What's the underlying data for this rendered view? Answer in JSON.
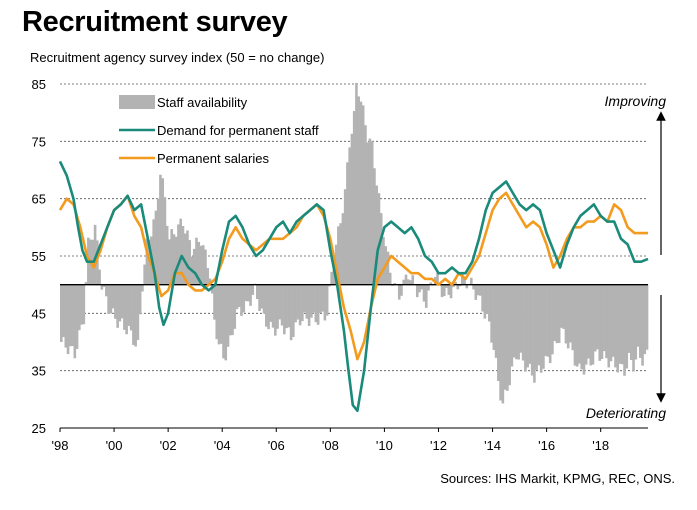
{
  "title": "Recruitment survey",
  "subtitle": "Recruitment agency survey index (50 = no change)",
  "source": "Sources: IHS Markit, KPMG, REC, ONS.",
  "colors": {
    "staff": "#b3b3b3",
    "demand": "#1a8a7a",
    "salaries": "#f39b1e"
  },
  "chart_data": {
    "type": "bar",
    "ylim": [
      25,
      85
    ],
    "yticks": [
      "85",
      "75",
      "65",
      "55",
      "45",
      "35",
      "25"
    ],
    "xlim": [
      1998.0,
      2019.75
    ],
    "xticks": [
      "'98",
      "'00",
      "'02",
      "'04",
      "'06",
      "'08",
      "'10",
      "'12",
      "'14",
      "'16",
      "'18"
    ],
    "baseline": 50,
    "annotations": {
      "up": "Improving",
      "down": "Deteriorating"
    },
    "series": [
      {
        "name": "Staff availability",
        "kind": "bar",
        "points": [
          [
            1998.0,
            40
          ],
          [
            1998.5,
            38
          ],
          [
            1998.83,
            44
          ],
          [
            1999.0,
            57
          ],
          [
            1999.25,
            60
          ],
          [
            1999.5,
            50
          ],
          [
            1999.75,
            46
          ],
          [
            2000.0,
            44
          ],
          [
            2000.5,
            42
          ],
          [
            2000.83,
            39
          ],
          [
            2001.0,
            50
          ],
          [
            2001.17,
            57
          ],
          [
            2001.5,
            62
          ],
          [
            2001.67,
            70
          ],
          [
            2001.83,
            65
          ],
          [
            2002.0,
            58
          ],
          [
            2002.5,
            61
          ],
          [
            2002.83,
            56
          ],
          [
            2003.17,
            58
          ],
          [
            2003.5,
            52
          ],
          [
            2003.67,
            43
          ],
          [
            2004.0,
            37
          ],
          [
            2004.25,
            40
          ],
          [
            2004.5,
            45
          ],
          [
            2004.83,
            46
          ],
          [
            2005.17,
            49
          ],
          [
            2005.5,
            44
          ],
          [
            2005.83,
            42
          ],
          [
            2006.17,
            43
          ],
          [
            2006.5,
            41
          ],
          [
            2006.83,
            44
          ],
          [
            2007.17,
            44
          ],
          [
            2007.5,
            44
          ],
          [
            2007.83,
            45
          ],
          [
            2008.0,
            52
          ],
          [
            2008.17,
            57
          ],
          [
            2008.33,
            61
          ],
          [
            2008.5,
            66
          ],
          [
            2008.67,
            75
          ],
          [
            2008.83,
            79
          ],
          [
            2008.92,
            85
          ],
          [
            2009.0,
            84
          ],
          [
            2009.17,
            80
          ],
          [
            2009.33,
            76
          ],
          [
            2009.5,
            74
          ],
          [
            2009.67,
            68
          ],
          [
            2009.83,
            62
          ],
          [
            2010.0,
            57
          ],
          [
            2010.17,
            52
          ],
          [
            2010.33,
            50
          ],
          [
            2010.5,
            48
          ],
          [
            2010.83,
            52
          ],
          [
            2011.17,
            49
          ],
          [
            2011.5,
            47
          ],
          [
            2011.83,
            52
          ],
          [
            2012.17,
            48
          ],
          [
            2012.5,
            49
          ],
          [
            2012.83,
            51
          ],
          [
            2013.17,
            50
          ],
          [
            2013.5,
            47
          ],
          [
            2013.83,
            43
          ],
          [
            2014.0,
            39
          ],
          [
            2014.17,
            33
          ],
          [
            2014.33,
            29
          ],
          [
            2014.5,
            32
          ],
          [
            2014.67,
            35
          ],
          [
            2014.83,
            38
          ],
          [
            2015.17,
            36
          ],
          [
            2015.5,
            34
          ],
          [
            2015.83,
            36
          ],
          [
            2016.17,
            38
          ],
          [
            2016.5,
            42
          ],
          [
            2016.83,
            39
          ],
          [
            2017.17,
            35
          ],
          [
            2017.5,
            36
          ],
          [
            2017.83,
            38
          ],
          [
            2018.17,
            37
          ],
          [
            2018.5,
            36
          ],
          [
            2018.83,
            35
          ],
          [
            2019.0,
            37
          ],
          [
            2019.17,
            36
          ],
          [
            2019.33,
            38
          ],
          [
            2019.5,
            37
          ],
          [
            2019.75,
            38
          ]
        ]
      },
      {
        "name": "Demand for permanent staff",
        "kind": "line",
        "points": [
          [
            1998.0,
            71.5
          ],
          [
            1998.25,
            69
          ],
          [
            1998.5,
            65
          ],
          [
            1998.67,
            60
          ],
          [
            1998.83,
            56
          ],
          [
            1999.0,
            54
          ],
          [
            1999.25,
            54
          ],
          [
            1999.5,
            57
          ],
          [
            1999.75,
            60
          ],
          [
            2000.0,
            63
          ],
          [
            2000.25,
            64
          ],
          [
            2000.5,
            65.5
          ],
          [
            2000.75,
            63
          ],
          [
            2001.0,
            64
          ],
          [
            2001.25,
            58
          ],
          [
            2001.5,
            52
          ],
          [
            2001.67,
            46
          ],
          [
            2001.83,
            43
          ],
          [
            2002.0,
            45
          ],
          [
            2002.25,
            52
          ],
          [
            2002.5,
            55
          ],
          [
            2002.75,
            53
          ],
          [
            2003.0,
            52
          ],
          [
            2003.25,
            50
          ],
          [
            2003.5,
            49
          ],
          [
            2003.75,
            50
          ],
          [
            2004.0,
            56
          ],
          [
            2004.25,
            61
          ],
          [
            2004.5,
            62
          ],
          [
            2004.75,
            60
          ],
          [
            2005.0,
            57
          ],
          [
            2005.25,
            55
          ],
          [
            2005.5,
            56
          ],
          [
            2005.75,
            58
          ],
          [
            2006.0,
            60
          ],
          [
            2006.25,
            61
          ],
          [
            2006.5,
            59
          ],
          [
            2006.75,
            61
          ],
          [
            2007.0,
            62
          ],
          [
            2007.25,
            63
          ],
          [
            2007.5,
            64
          ],
          [
            2007.75,
            63
          ],
          [
            2008.0,
            56
          ],
          [
            2008.25,
            50
          ],
          [
            2008.5,
            42
          ],
          [
            2008.67,
            35
          ],
          [
            2008.83,
            29
          ],
          [
            2009.0,
            28
          ],
          [
            2009.25,
            35
          ],
          [
            2009.5,
            46
          ],
          [
            2009.75,
            56
          ],
          [
            2010.0,
            60
          ],
          [
            2010.25,
            61
          ],
          [
            2010.5,
            60
          ],
          [
            2010.75,
            59
          ],
          [
            2011.0,
            60
          ],
          [
            2011.25,
            58
          ],
          [
            2011.5,
            55
          ],
          [
            2011.75,
            54
          ],
          [
            2012.0,
            52
          ],
          [
            2012.25,
            52
          ],
          [
            2012.5,
            53
          ],
          [
            2012.75,
            52
          ],
          [
            2013.0,
            52
          ],
          [
            2013.25,
            54
          ],
          [
            2013.5,
            58
          ],
          [
            2013.75,
            63
          ],
          [
            2014.0,
            66
          ],
          [
            2014.25,
            67
          ],
          [
            2014.5,
            68
          ],
          [
            2014.75,
            66
          ],
          [
            2015.0,
            64
          ],
          [
            2015.25,
            63
          ],
          [
            2015.5,
            64
          ],
          [
            2015.75,
            63
          ],
          [
            2016.0,
            59
          ],
          [
            2016.25,
            56
          ],
          [
            2016.5,
            53
          ],
          [
            2016.75,
            57
          ],
          [
            2017.0,
            60
          ],
          [
            2017.25,
            62
          ],
          [
            2017.5,
            63
          ],
          [
            2017.75,
            64
          ],
          [
            2018.0,
            62
          ],
          [
            2018.25,
            61
          ],
          [
            2018.5,
            61
          ],
          [
            2018.75,
            58
          ],
          [
            2019.0,
            57
          ],
          [
            2019.25,
            54
          ],
          [
            2019.5,
            54
          ],
          [
            2019.75,
            54.5
          ]
        ]
      },
      {
        "name": "Permanent salaries",
        "kind": "line",
        "points": [
          [
            1998.0,
            63
          ],
          [
            1998.25,
            65
          ],
          [
            1998.5,
            64
          ],
          [
            1998.75,
            60
          ],
          [
            1999.0,
            55
          ],
          [
            1999.25,
            53
          ],
          [
            1999.5,
            56
          ],
          [
            1999.75,
            60
          ],
          [
            2000.0,
            63
          ],
          [
            2000.25,
            64
          ],
          [
            2000.5,
            65.5
          ],
          [
            2000.75,
            62
          ],
          [
            2001.0,
            60
          ],
          [
            2001.25,
            55
          ],
          [
            2001.5,
            52
          ],
          [
            2001.75,
            48
          ],
          [
            2002.0,
            49
          ],
          [
            2002.25,
            52
          ],
          [
            2002.5,
            52
          ],
          [
            2002.75,
            50
          ],
          [
            2003.0,
            49
          ],
          [
            2003.25,
            49
          ],
          [
            2003.5,
            50
          ],
          [
            2003.75,
            51
          ],
          [
            2004.0,
            54
          ],
          [
            2004.25,
            58
          ],
          [
            2004.5,
            60
          ],
          [
            2004.75,
            58
          ],
          [
            2005.0,
            57
          ],
          [
            2005.25,
            56
          ],
          [
            2005.5,
            57
          ],
          [
            2005.75,
            58
          ],
          [
            2006.0,
            58
          ],
          [
            2006.25,
            58
          ],
          [
            2006.5,
            59
          ],
          [
            2006.75,
            60
          ],
          [
            2007.0,
            62
          ],
          [
            2007.25,
            63
          ],
          [
            2007.5,
            64
          ],
          [
            2007.75,
            62
          ],
          [
            2008.0,
            58
          ],
          [
            2008.25,
            52
          ],
          [
            2008.5,
            46
          ],
          [
            2008.75,
            42
          ],
          [
            2009.0,
            37
          ],
          [
            2009.25,
            40
          ],
          [
            2009.5,
            46
          ],
          [
            2009.75,
            51
          ],
          [
            2010.0,
            53
          ],
          [
            2010.25,
            55
          ],
          [
            2010.5,
            54
          ],
          [
            2010.75,
            53
          ],
          [
            2011.0,
            52
          ],
          [
            2011.25,
            52
          ],
          [
            2011.5,
            51
          ],
          [
            2011.75,
            51
          ],
          [
            2012.0,
            50
          ],
          [
            2012.25,
            51
          ],
          [
            2012.5,
            50
          ],
          [
            2012.75,
            52
          ],
          [
            2013.0,
            51
          ],
          [
            2013.25,
            53
          ],
          [
            2013.5,
            55
          ],
          [
            2013.75,
            59
          ],
          [
            2014.0,
            63
          ],
          [
            2014.25,
            65
          ],
          [
            2014.5,
            66
          ],
          [
            2014.75,
            64
          ],
          [
            2015.0,
            62
          ],
          [
            2015.25,
            60
          ],
          [
            2015.5,
            61
          ],
          [
            2015.75,
            60
          ],
          [
            2016.0,
            57
          ],
          [
            2016.25,
            53
          ],
          [
            2016.5,
            55
          ],
          [
            2016.75,
            58
          ],
          [
            2017.0,
            60
          ],
          [
            2017.25,
            60
          ],
          [
            2017.5,
            61
          ],
          [
            2017.75,
            61
          ],
          [
            2018.0,
            62
          ],
          [
            2018.25,
            61
          ],
          [
            2018.5,
            64
          ],
          [
            2018.75,
            63
          ],
          [
            2019.0,
            60
          ],
          [
            2019.25,
            59
          ],
          [
            2019.5,
            59
          ],
          [
            2019.75,
            59
          ]
        ]
      }
    ]
  }
}
